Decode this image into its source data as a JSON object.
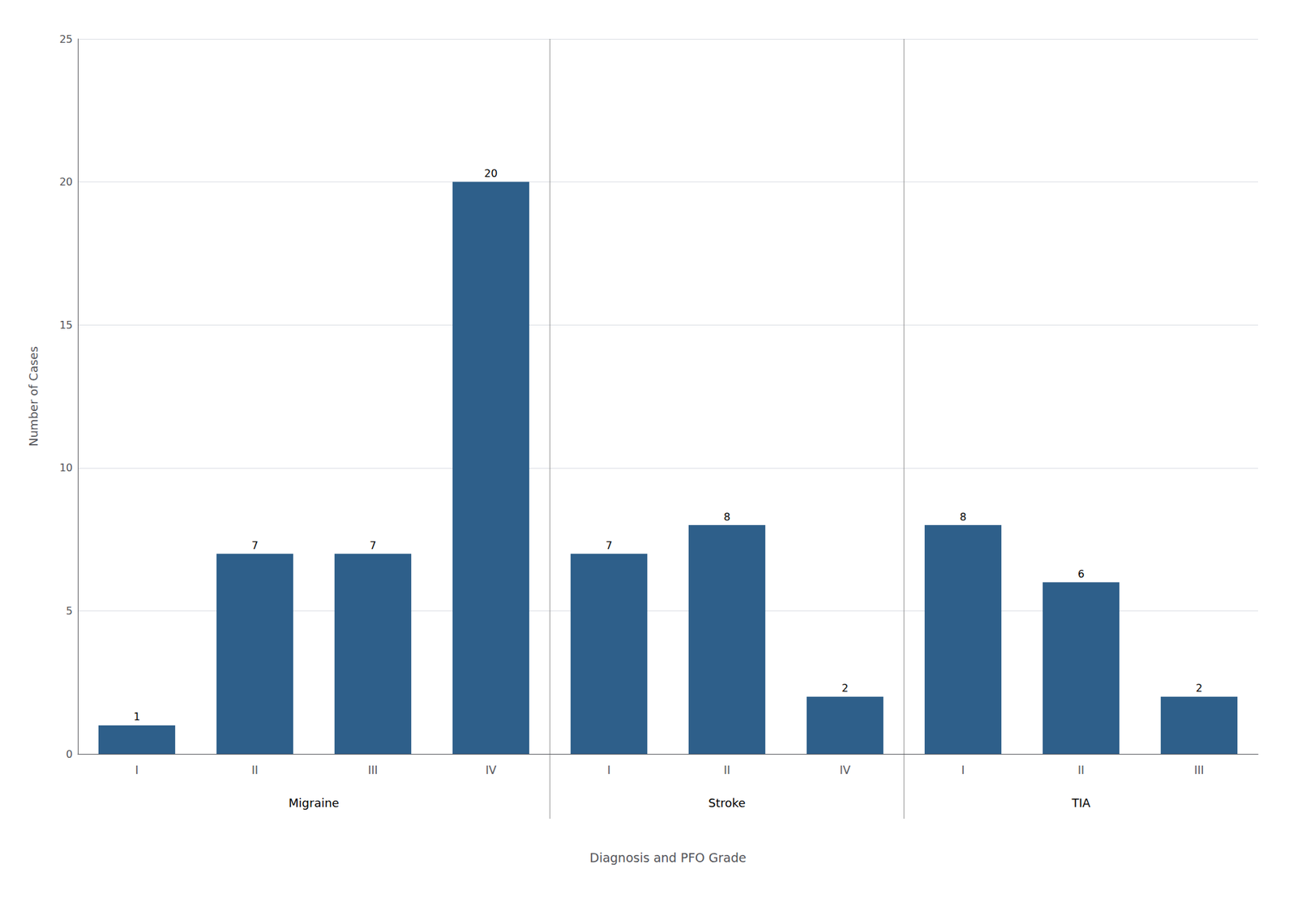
{
  "chart_data": {
    "type": "bar",
    "categories": [
      "I",
      "II",
      "III",
      "IV",
      "I",
      "II",
      "IV",
      "I",
      "II",
      "III"
    ],
    "groups": [
      "Migraine",
      "Migraine",
      "Migraine",
      "Migraine",
      "Stroke",
      "Stroke",
      "Stroke",
      "TIA",
      "TIA",
      "TIA"
    ],
    "values": [
      1,
      7,
      7,
      20,
      7,
      8,
      2,
      8,
      6,
      2
    ],
    "color": "#2E5F8A",
    "xlabel": "Diagnosis and PFO Grade",
    "ylabel": "Number of Cases",
    "ylim": [
      0,
      25
    ],
    "yticks": [
      0,
      5,
      10,
      15,
      20,
      25
    ],
    "grid": true,
    "data_labels": true
  }
}
